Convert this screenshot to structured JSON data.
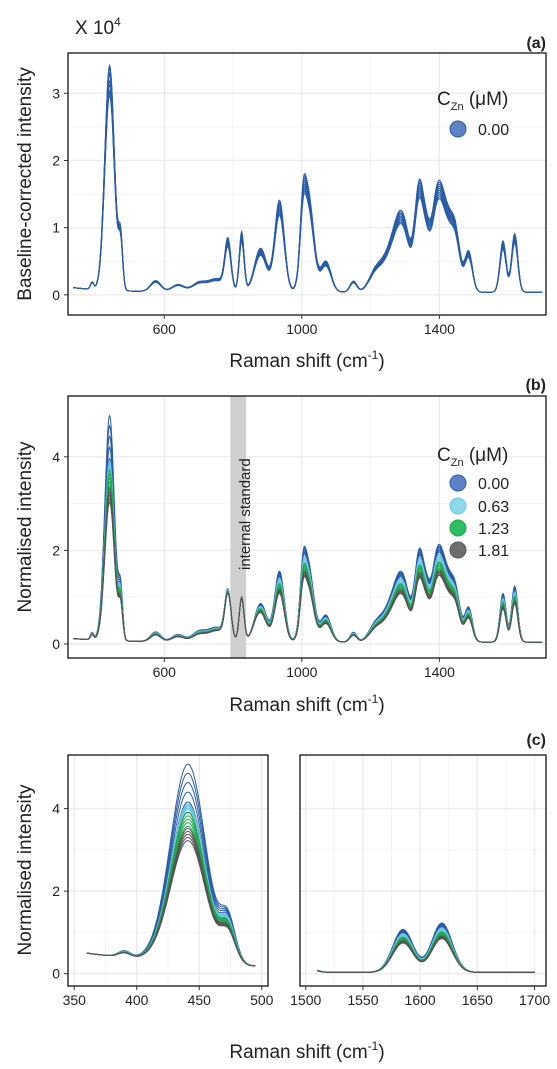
{
  "colors": {
    "series": [
      "#2a5ca8",
      "#6dc6de",
      "#1faa4b",
      "#555555"
    ],
    "legend_fill": [
      "#5f82c4",
      "#8fd8ec",
      "#2fbf62",
      "#6e6e6e"
    ],
    "grid": "#ececec",
    "frame": "#000000",
    "standard_band": "#cfcfcf"
  },
  "chart_data": [
    {
      "type": "line",
      "panel_label": "(a)",
      "exponent_label": "X 10",
      "exponent_power": "4",
      "xlabel": "Raman shift (cm",
      "xlabel_sup": "-1",
      "xlabel_tail": ")",
      "ylabel": "Baseline-corrected intensity",
      "xlim": [
        320,
        1710
      ],
      "ylim": [
        -0.3,
        3.6
      ],
      "x_ticks": [
        600,
        1000,
        1400
      ],
      "y_ticks": [
        0,
        1,
        2,
        3
      ],
      "grid": true,
      "legend_position": "top-right",
      "legend_title": "C",
      "legend_title_sub": "Zn",
      "legend_title_unit": " (μM)",
      "legend_entries": [
        "0.00"
      ],
      "series": [
        {
          "name": "0.00",
          "color": "#2a5ca8",
          "replicates": 10,
          "peak_spread": 0.18
        }
      ],
      "peaks": [
        [
          441,
          14,
          3.35
        ],
        [
          473,
          6,
          0.67
        ],
        [
          390,
          5,
          0.1
        ],
        [
          575,
          15,
          0.15
        ],
        [
          640,
          18,
          0.1
        ],
        [
          700,
          20,
          0.12
        ],
        [
          752,
          25,
          0.18
        ],
        [
          785,
          9,
          0.67
        ],
        [
          825,
          7,
          0.82
        ],
        [
          880,
          18,
          0.6
        ],
        [
          935,
          14,
          1.25
        ],
        [
          1003,
          8,
          0.62
        ],
        [
          1018,
          16,
          1.35
        ],
        [
          1070,
          15,
          0.42
        ],
        [
          1150,
          10,
          0.15
        ],
        [
          1215,
          20,
          0.28
        ],
        [
          1255,
          22,
          0.42
        ],
        [
          1292,
          22,
          1.0
        ],
        [
          1340,
          12,
          1.25
        ],
        [
          1360,
          12,
          0.7
        ],
        [
          1393,
          16,
          1.25
        ],
        [
          1420,
          16,
          0.85
        ],
        [
          1447,
          14,
          0.75
        ],
        [
          1485,
          11,
          0.55
        ],
        [
          1585,
          9,
          0.7
        ],
        [
          1619,
          9,
          0.8
        ]
      ],
      "baseline": [
        0.07,
        0.04
      ]
    },
    {
      "type": "line",
      "panel_label": "(b)",
      "xlabel": "Raman shift (cm",
      "xlabel_sup": "-1",
      "xlabel_tail": ")",
      "ylabel": "Normalised intensity",
      "xlim": [
        320,
        1710
      ],
      "ylim": [
        -0.3,
        5.3
      ],
      "x_ticks": [
        600,
        1000,
        1400
      ],
      "y_ticks": [
        0,
        2,
        4
      ],
      "grid": true,
      "legend_position": "top-right",
      "legend_title": "C",
      "legend_title_sub": "Zn",
      "legend_title_unit": " (μM)",
      "legend_entries": [
        "0.00",
        "0.63",
        "1.23",
        "1.81"
      ],
      "annotation": "internal standard",
      "standard_band": [
        792,
        838
      ],
      "series": [
        {
          "name": "0.00",
          "color": "#2a5ca8",
          "peak_441": [
            3.5,
            5.0
          ]
        },
        {
          "name": "0.63",
          "color": "#6dc6de",
          "peak_441": [
            3.2,
            3.6
          ]
        },
        {
          "name": "1.23",
          "color": "#1faa4b",
          "peak_441": [
            2.6,
            3.1
          ]
        },
        {
          "name": "1.81",
          "color": "#555555",
          "peak_441": [
            2.1,
            2.5
          ]
        }
      ],
      "peaks": [
        [
          441,
          14,
          4.6
        ],
        [
          473,
          6,
          0.95
        ],
        [
          390,
          5,
          0.15
        ],
        [
          575,
          15,
          0.2
        ],
        [
          640,
          18,
          0.15
        ],
        [
          700,
          20,
          0.2
        ],
        [
          752,
          25,
          0.3
        ],
        [
          785,
          9,
          1.0
        ],
        [
          825,
          7,
          0.95
        ],
        [
          880,
          18,
          0.8
        ],
        [
          935,
          14,
          1.45
        ],
        [
          1003,
          8,
          0.8
        ],
        [
          1018,
          16,
          1.6
        ],
        [
          1070,
          15,
          0.55
        ],
        [
          1150,
          10,
          0.2
        ],
        [
          1215,
          20,
          0.35
        ],
        [
          1255,
          22,
          0.55
        ],
        [
          1292,
          22,
          1.3
        ],
        [
          1340,
          12,
          1.55
        ],
        [
          1360,
          12,
          0.9
        ],
        [
          1393,
          16,
          1.65
        ],
        [
          1420,
          16,
          1.1
        ],
        [
          1447,
          14,
          0.95
        ],
        [
          1485,
          11,
          0.7
        ],
        [
          1585,
          9,
          1.0
        ],
        [
          1619,
          9,
          1.15
        ]
      ],
      "baseline": [
        0.08,
        0.04
      ]
    },
    {
      "type": "line",
      "panel_label": "(c)",
      "xlabel": "Raman shift (cm",
      "xlabel_sup": "-1",
      "xlabel_tail": ")",
      "ylabel": "Normalised intensity",
      "ylim": [
        -0.3,
        5.3
      ],
      "y_ticks": [
        0,
        2,
        4
      ],
      "grid": true,
      "facets": [
        {
          "xlim": [
            345,
            505
          ],
          "x_ticks": [
            350,
            400,
            450,
            500
          ]
        },
        {
          "xlim": [
            1495,
            1710
          ],
          "x_ticks": [
            1500,
            1550,
            1600,
            1650,
            1700
          ]
        }
      ],
      "series": [
        {
          "name": "0.00",
          "color": "#2a5ca8"
        },
        {
          "name": "0.63",
          "color": "#6dc6de"
        },
        {
          "name": "1.23",
          "color": "#1faa4b"
        },
        {
          "name": "1.81",
          "color": "#555555"
        }
      ]
    }
  ]
}
